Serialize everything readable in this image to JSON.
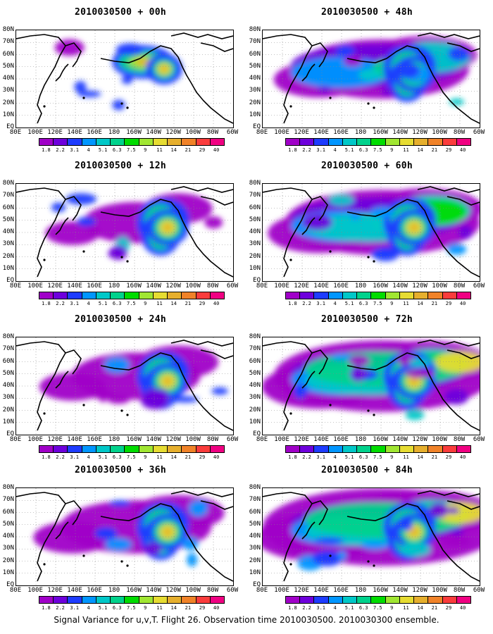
{
  "caption": "Signal Variance for u,v,T. Flight 26. Observation time 2010030500. 2010030300 ensemble.",
  "lat_labels": [
    "80N",
    "70N",
    "60N",
    "50N",
    "40N",
    "30N",
    "20N",
    "10N",
    "EQ"
  ],
  "lon_labels": [
    "80E",
    "100E",
    "120E",
    "140E",
    "160E",
    "180",
    "160W",
    "140W",
    "120W",
    "100W",
    "80W",
    "60W"
  ],
  "colorbar": {
    "labels": [
      "1.8",
      "2.2",
      "3.1",
      "4",
      "5.1",
      "6.3",
      "7.5",
      "9",
      "11",
      "14",
      "21",
      "29",
      "40"
    ],
    "colors": [
      "#a000c8",
      "#6e00dc",
      "#1e3cff",
      "#0096ff",
      "#00c8c8",
      "#00d28c",
      "#00dc00",
      "#a0e632",
      "#e6dc32",
      "#e6af2d",
      "#f08228",
      "#fa3c3c",
      "#f00082"
    ]
  },
  "panels": [
    {
      "title": "2010030500 + 00h",
      "forecast_hours": 0
    },
    {
      "title": "2010030500 + 48h",
      "forecast_hours": 48
    },
    {
      "title": "2010030500 + 12h",
      "forecast_hours": 12
    },
    {
      "title": "2010030500 + 60h",
      "forecast_hours": 60
    },
    {
      "title": "2010030500 + 24h",
      "forecast_hours": 24
    },
    {
      "title": "2010030500 + 72h",
      "forecast_hours": 72
    },
    {
      "title": "2010030500 + 36h",
      "forecast_hours": 36
    },
    {
      "title": "2010030500 + 84h",
      "forecast_hours": 84
    }
  ]
}
